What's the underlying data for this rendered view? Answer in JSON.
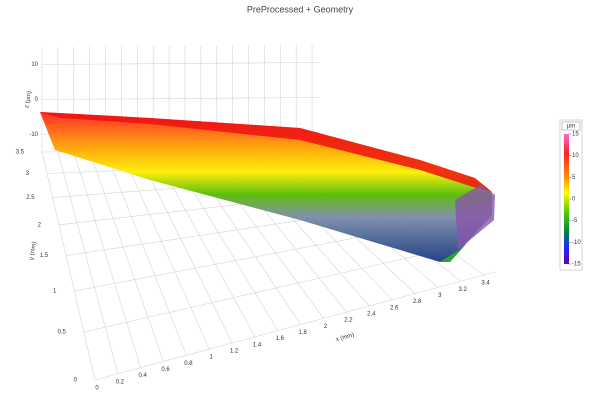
{
  "chart_data": {
    "type": "surface3d",
    "title": "PreProcessed + Geometry",
    "x_label": "x (mm)",
    "y_label": "y (mm)",
    "z_label": "z (µm)",
    "xlim": [
      0,
      3.5
    ],
    "xticks": [
      0,
      0.2,
      0.4,
      0.6,
      0.8,
      1,
      1.2,
      1.4,
      1.6,
      1.8,
      2,
      2.2,
      2.4,
      2.6,
      2.8,
      3,
      3.2,
      3.4
    ],
    "ylim": [
      0,
      3.5
    ],
    "yticks": [
      0,
      0.5,
      1,
      1.5,
      2,
      2.5,
      3,
      3.5
    ],
    "zlim": [
      -15,
      15
    ],
    "zticks": [
      -10,
      0,
      10
    ],
    "grid": true,
    "colorbar": {
      "label": "µm",
      "lim": [
        -15,
        15
      ],
      "ticks": [
        15,
        10,
        5,
        0,
        -5,
        -10,
        -15
      ]
    }
  }
}
